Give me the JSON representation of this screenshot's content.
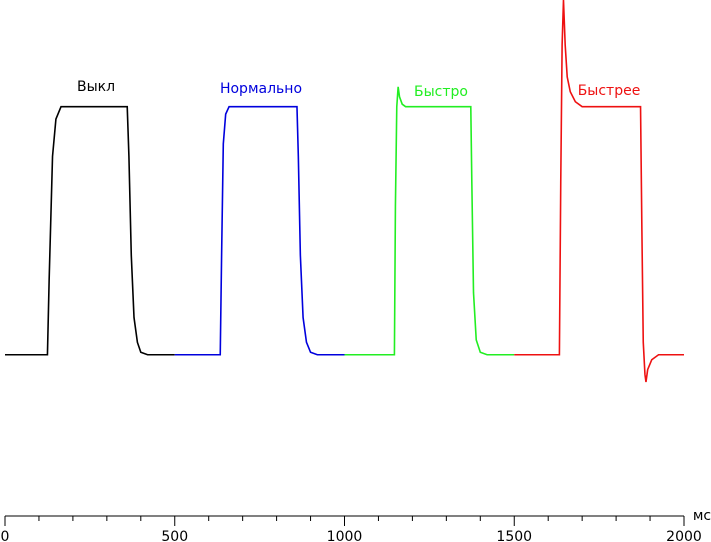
{
  "chart_data": {
    "type": "line",
    "xlabel": "мс",
    "xlim": [
      0,
      2000
    ],
    "xticks": [
      0,
      500,
      1000,
      1500,
      2000
    ],
    "xminorticks": [
      100,
      200,
      300,
      400,
      600,
      700,
      800,
      900,
      1100,
      1200,
      1300,
      1400,
      1600,
      1700,
      1800,
      1900
    ],
    "ylim": [
      -65,
      143
    ],
    "series": [
      {
        "name": "Выкл",
        "color": "#000000",
        "x": [
          0,
          125,
          130,
          140,
          150,
          165,
          360,
          365,
          372,
          380,
          390,
          400,
          420,
          500
        ],
        "values": [
          0,
          0,
          30,
          80,
          95,
          100,
          100,
          80,
          40,
          15,
          5,
          1,
          0,
          0
        ]
      },
      {
        "name": "Нормально",
        "color": "#0000dd",
        "x": [
          500,
          634,
          638,
          643,
          650,
          660,
          860,
          864,
          870,
          878,
          888,
          900,
          920,
          1000
        ],
        "values": [
          0,
          0,
          40,
          85,
          97,
          100,
          100,
          80,
          40,
          15,
          5,
          1,
          0,
          0
        ]
      },
      {
        "name": "Быстро",
        "color": "#22ee22",
        "x": [
          1000,
          1147,
          1150,
          1154,
          1158,
          1162,
          1170,
          1180,
          1372,
          1375,
          1380,
          1388,
          1400,
          1420,
          1500
        ],
        "values": [
          0,
          0,
          60,
          100,
          108,
          104,
          101,
          100,
          100,
          70,
          25,
          6,
          1,
          0,
          0
        ]
      },
      {
        "name": "Быстрее",
        "color": "#ee1111",
        "x": [
          1500,
          1633,
          1637,
          1641,
          1645,
          1650,
          1656,
          1665,
          1680,
          1700,
          1872,
          1876,
          1880,
          1885,
          1888,
          1893,
          1905,
          1925,
          2000
        ],
        "values": [
          0,
          0,
          70,
          125,
          143,
          125,
          112,
          106,
          102,
          100,
          100,
          50,
          5,
          -8,
          -11,
          -6,
          -2,
          0,
          0
        ]
      }
    ]
  }
}
